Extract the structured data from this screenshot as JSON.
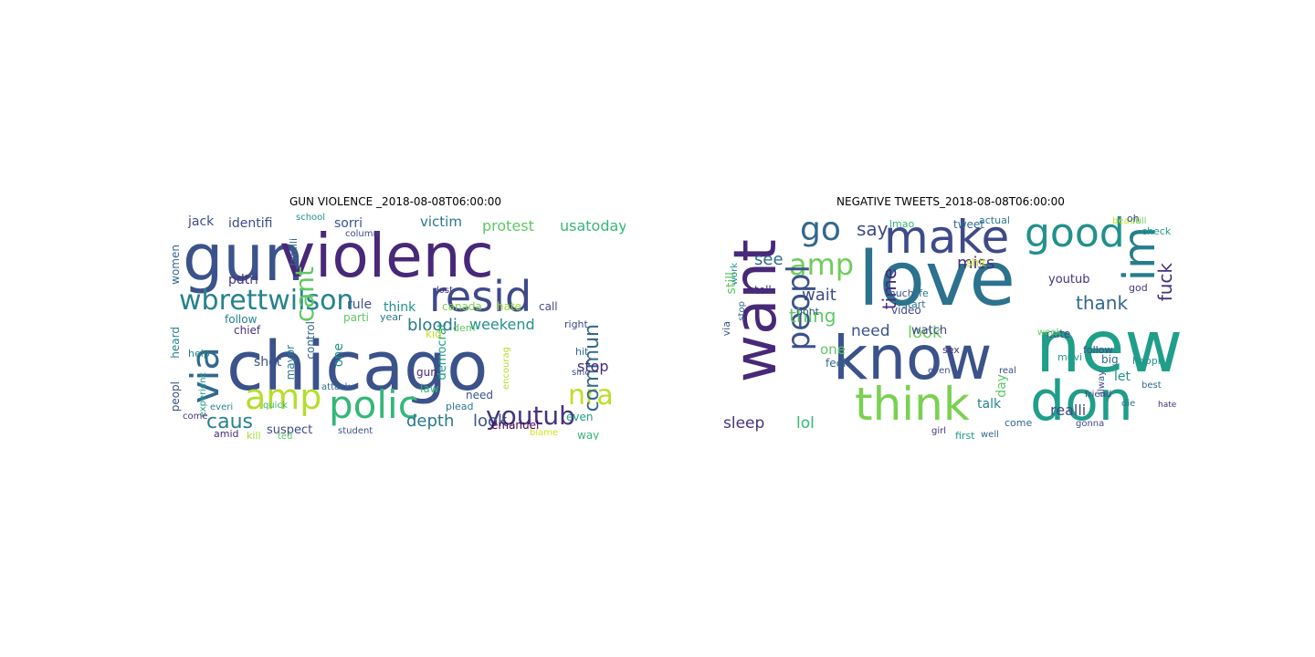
{
  "panels": [
    {
      "title": "GUN VIOLENCE _2018-08-08T06:00:00",
      "words": [
        {
          "text": "chicago",
          "color": "#3b528b"
        },
        {
          "text": "gun",
          "color": "#3b528b"
        },
        {
          "text": "violenc",
          "color": "#482878"
        },
        {
          "text": "resid",
          "color": "#3e4a89"
        },
        {
          "text": "via",
          "color": "#31688e"
        },
        {
          "text": "wbrettwilson",
          "color": "#26828e"
        },
        {
          "text": "polic",
          "color": "#35b779"
        },
        {
          "text": "amp",
          "color": "#b5de2b"
        },
        {
          "text": "youtub",
          "color": "#46327e"
        },
        {
          "text": "nra",
          "color": "#bddf26"
        },
        {
          "text": "caus",
          "color": "#26828e"
        },
        {
          "text": "cant",
          "color": "#5ec962"
        },
        {
          "text": "commun",
          "color": "#31688e"
        },
        {
          "text": "bloodi",
          "color": "#2a788e"
        },
        {
          "text": "weekend",
          "color": "#21918c"
        },
        {
          "text": "depth",
          "color": "#2a788e"
        },
        {
          "text": "look",
          "color": "#3b528b"
        },
        {
          "text": "stop",
          "color": "#472d7b"
        },
        {
          "text": "protest",
          "color": "#5ec962"
        },
        {
          "text": "usatoday",
          "color": "#35b779"
        },
        {
          "text": "victim",
          "color": "#2a788e"
        },
        {
          "text": "identifi",
          "color": "#3e4a89"
        },
        {
          "text": "sorri",
          "color": "#3b528b"
        },
        {
          "text": "jack",
          "color": "#3e4a89"
        },
        {
          "text": "women",
          "color": "#31688e"
        },
        {
          "text": "pdtri",
          "color": "#46327e"
        },
        {
          "text": "rule",
          "color": "#3b528b"
        },
        {
          "text": "think",
          "color": "#21918c"
        },
        {
          "text": "canada",
          "color": "#7ad151"
        },
        {
          "text": "hate",
          "color": "#a0da39"
        },
        {
          "text": "call",
          "color": "#3e4a89"
        },
        {
          "text": "dem",
          "color": "#5ec962"
        },
        {
          "text": "democrat",
          "color": "#1fa187"
        },
        {
          "text": "follow",
          "color": "#26828e"
        },
        {
          "text": "chief",
          "color": "#46327e"
        },
        {
          "text": "parti",
          "color": "#5ec962"
        },
        {
          "text": "heard",
          "color": "#26828e"
        },
        {
          "text": "shot",
          "color": "#3b528b"
        },
        {
          "text": "mayor",
          "color": "#2a788e"
        },
        {
          "text": "one",
          "color": "#21918c"
        },
        {
          "text": "control",
          "color": "#31688e"
        },
        {
          "text": "year",
          "color": "#2a788e"
        },
        {
          "text": "kid",
          "color": "#c2df23"
        },
        {
          "text": "gun",
          "color": "#482878"
        },
        {
          "text": "law",
          "color": "#35b779"
        },
        {
          "text": "right",
          "color": "#3e4a89"
        },
        {
          "text": "need",
          "color": "#3b528b"
        },
        {
          "text": "emanuel",
          "color": "#440154"
        },
        {
          "text": "even",
          "color": "#1fa187"
        },
        {
          "text": "way",
          "color": "#35b779"
        },
        {
          "text": "peopl",
          "color": "#3b528b"
        },
        {
          "text": "help",
          "color": "#26828e"
        },
        {
          "text": "suspect",
          "color": "#3e4a89"
        },
        {
          "text": "amid",
          "color": "#482878"
        },
        {
          "text": "kill",
          "color": "#a0da39"
        },
        {
          "text": "hit",
          "color": "#31688e"
        },
        {
          "text": "sinc",
          "color": "#3b528b"
        },
        {
          "text": "lost",
          "color": "#46327e"
        },
        {
          "text": "school",
          "color": "#21918c"
        },
        {
          "text": "famili",
          "color": "#31688e"
        },
        {
          "text": "everi",
          "color": "#26828e"
        },
        {
          "text": "quick",
          "color": "#35b779"
        },
        {
          "text": "student",
          "color": "#3b528b"
        },
        {
          "text": "experienc",
          "color": "#1f9e89"
        },
        {
          "text": "attack",
          "color": "#31688e"
        },
        {
          "text": "plead",
          "color": "#2a788e"
        },
        {
          "text": "encourag",
          "color": "#b5de2b"
        },
        {
          "text": "blame",
          "color": "#d8e219"
        },
        {
          "text": "come",
          "color": "#46327e"
        },
        {
          "text": "column",
          "color": "#3e4a89"
        },
        {
          "text": "ted",
          "color": "#5ec962"
        }
      ]
    },
    {
      "title": "NEGATIVE TWEETS_2018-08-08T06:00:00",
      "words": [
        {
          "text": "love",
          "color": "#2c728e"
        },
        {
          "text": "new",
          "color": "#1f9e89"
        },
        {
          "text": "want",
          "color": "#482878"
        },
        {
          "text": "know",
          "color": "#3b528b"
        },
        {
          "text": "make",
          "color": "#3e4a89"
        },
        {
          "text": "good",
          "color": "#21918c"
        },
        {
          "text": "don",
          "color": "#1f9e89"
        },
        {
          "text": "think",
          "color": "#7ad151"
        },
        {
          "text": "im",
          "color": "#287c8e"
        },
        {
          "text": "go",
          "color": "#31688e"
        },
        {
          "text": "say",
          "color": "#3e4a89"
        },
        {
          "text": "amp",
          "color": "#6ece58"
        },
        {
          "text": "peopl",
          "color": "#3b528b"
        },
        {
          "text": "see",
          "color": "#31688e"
        },
        {
          "text": "wait",
          "color": "#3e4a89"
        },
        {
          "text": "thing",
          "color": "#5ec962"
        },
        {
          "text": "miss",
          "color": "#46327e"
        },
        {
          "text": "thank",
          "color": "#31688e"
        },
        {
          "text": "fuck",
          "color": "#46327e"
        },
        {
          "text": "time",
          "color": "#482878"
        },
        {
          "text": "need",
          "color": "#3b528b"
        },
        {
          "text": "one",
          "color": "#5ec962"
        },
        {
          "text": "look",
          "color": "#6ece58"
        },
        {
          "text": "sleep",
          "color": "#46327e"
        },
        {
          "text": "lol",
          "color": "#35b779"
        },
        {
          "text": "watch",
          "color": "#3e4a89"
        },
        {
          "text": "day",
          "color": "#5ec962"
        },
        {
          "text": "talk",
          "color": "#26828e"
        },
        {
          "text": "realli",
          "color": "#3e4a89"
        },
        {
          "text": "still",
          "color": "#5ec962"
        },
        {
          "text": "tell",
          "color": "#46327e"
        },
        {
          "text": "youtub",
          "color": "#46327e"
        },
        {
          "text": "shit",
          "color": "#bddf26"
        },
        {
          "text": "big",
          "color": "#31688e"
        },
        {
          "text": "let",
          "color": "#21918c"
        },
        {
          "text": "follow",
          "color": "#3e4a89"
        },
        {
          "text": "best",
          "color": "#31688e"
        },
        {
          "text": "god",
          "color": "#46327e"
        },
        {
          "text": "happi",
          "color": "#21918c"
        },
        {
          "text": "hate",
          "color": "#472d7b"
        },
        {
          "text": "feel",
          "color": "#31688e"
        },
        {
          "text": "video",
          "color": "#3e4a89"
        },
        {
          "text": "dont",
          "color": "#3b528b"
        },
        {
          "text": "tweet",
          "color": "#31688e"
        },
        {
          "text": "actual",
          "color": "#2a788e"
        },
        {
          "text": "beauti",
          "color": "#bddf26"
        },
        {
          "text": "full",
          "color": "#6ece58"
        },
        {
          "text": "life",
          "color": "#2a788e"
        },
        {
          "text": "much",
          "color": "#3b528b"
        },
        {
          "text": "start",
          "color": "#2a788e"
        },
        {
          "text": "come",
          "color": "#31688e"
        },
        {
          "text": "gonna",
          "color": "#3e4a89"
        },
        {
          "text": "real",
          "color": "#3e4a89"
        },
        {
          "text": "cute",
          "color": "#3e4a89"
        },
        {
          "text": "movi",
          "color": "#1f9e89"
        },
        {
          "text": "week",
          "color": "#5ec962"
        },
        {
          "text": "lmao",
          "color": "#35b779"
        },
        {
          "text": "oh",
          "color": "#3e4a89"
        },
        {
          "text": "check",
          "color": "#1f9e89"
        },
        {
          "text": "via",
          "color": "#3b528b"
        },
        {
          "text": "work",
          "color": "#21918c"
        },
        {
          "text": "stop",
          "color": "#31688e"
        },
        {
          "text": "sex",
          "color": "#46327e"
        },
        {
          "text": "even",
          "color": "#3b528b"
        },
        {
          "text": "first",
          "color": "#1f9e89"
        },
        {
          "text": "well",
          "color": "#31688e"
        },
        {
          "text": "friend",
          "color": "#3e4a89"
        },
        {
          "text": "die",
          "color": "#2a788e"
        },
        {
          "text": "alway",
          "color": "#3e4a89"
        },
        {
          "text": "girl",
          "color": "#46327e"
        }
      ]
    }
  ]
}
